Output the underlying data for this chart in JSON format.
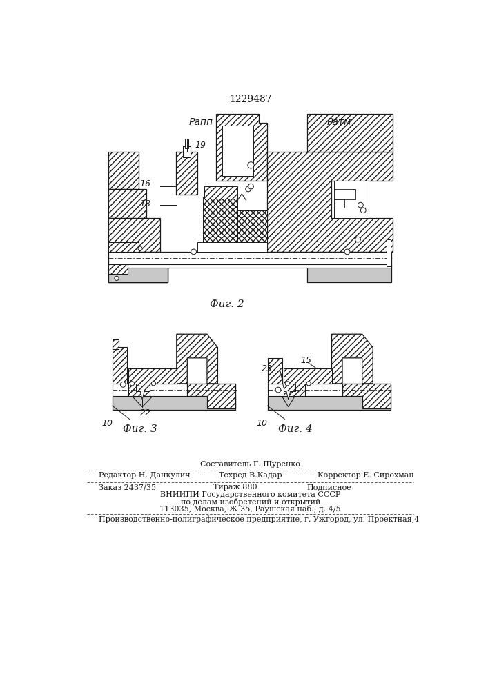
{
  "patent_number": "1229487",
  "fig2_label": "Фиг. 2",
  "fig3_label": "Фиг. 3",
  "fig4_label": "Фиг. 4",
  "label_rapp": "Pапп",
  "label_ratm": "Pатм",
  "num_16": "16",
  "num_18": "18",
  "num_19": "19",
  "num_22": "22",
  "num_23": "23",
  "num_15": "15",
  "num_10a": "10",
  "num_10b": "10",
  "footer_sestavitel": "Составитель Г. Щуренко",
  "footer_redaktor": "Редактор Н. Данкулич",
  "footer_tehred": "Техред В.Кадар",
  "footer_korrektor": "Корректор Е. Сирохман",
  "footer_zakaz": "Заказ 2437/35",
  "footer_tirazh": "Тираж 880",
  "footer_podpisnoe": "Подписное",
  "footer_vniip1": "ВНИИПИ Государственного комитета СССР",
  "footer_vniip2": "по делам изобретений и открытий",
  "footer_addr": "113035, Москва, Ж-35, Раушская наб., д. 4/5",
  "footer_proizv": "Производственно-полиграфическое предприятие, г. Ужгород, ул. Проектная,4"
}
